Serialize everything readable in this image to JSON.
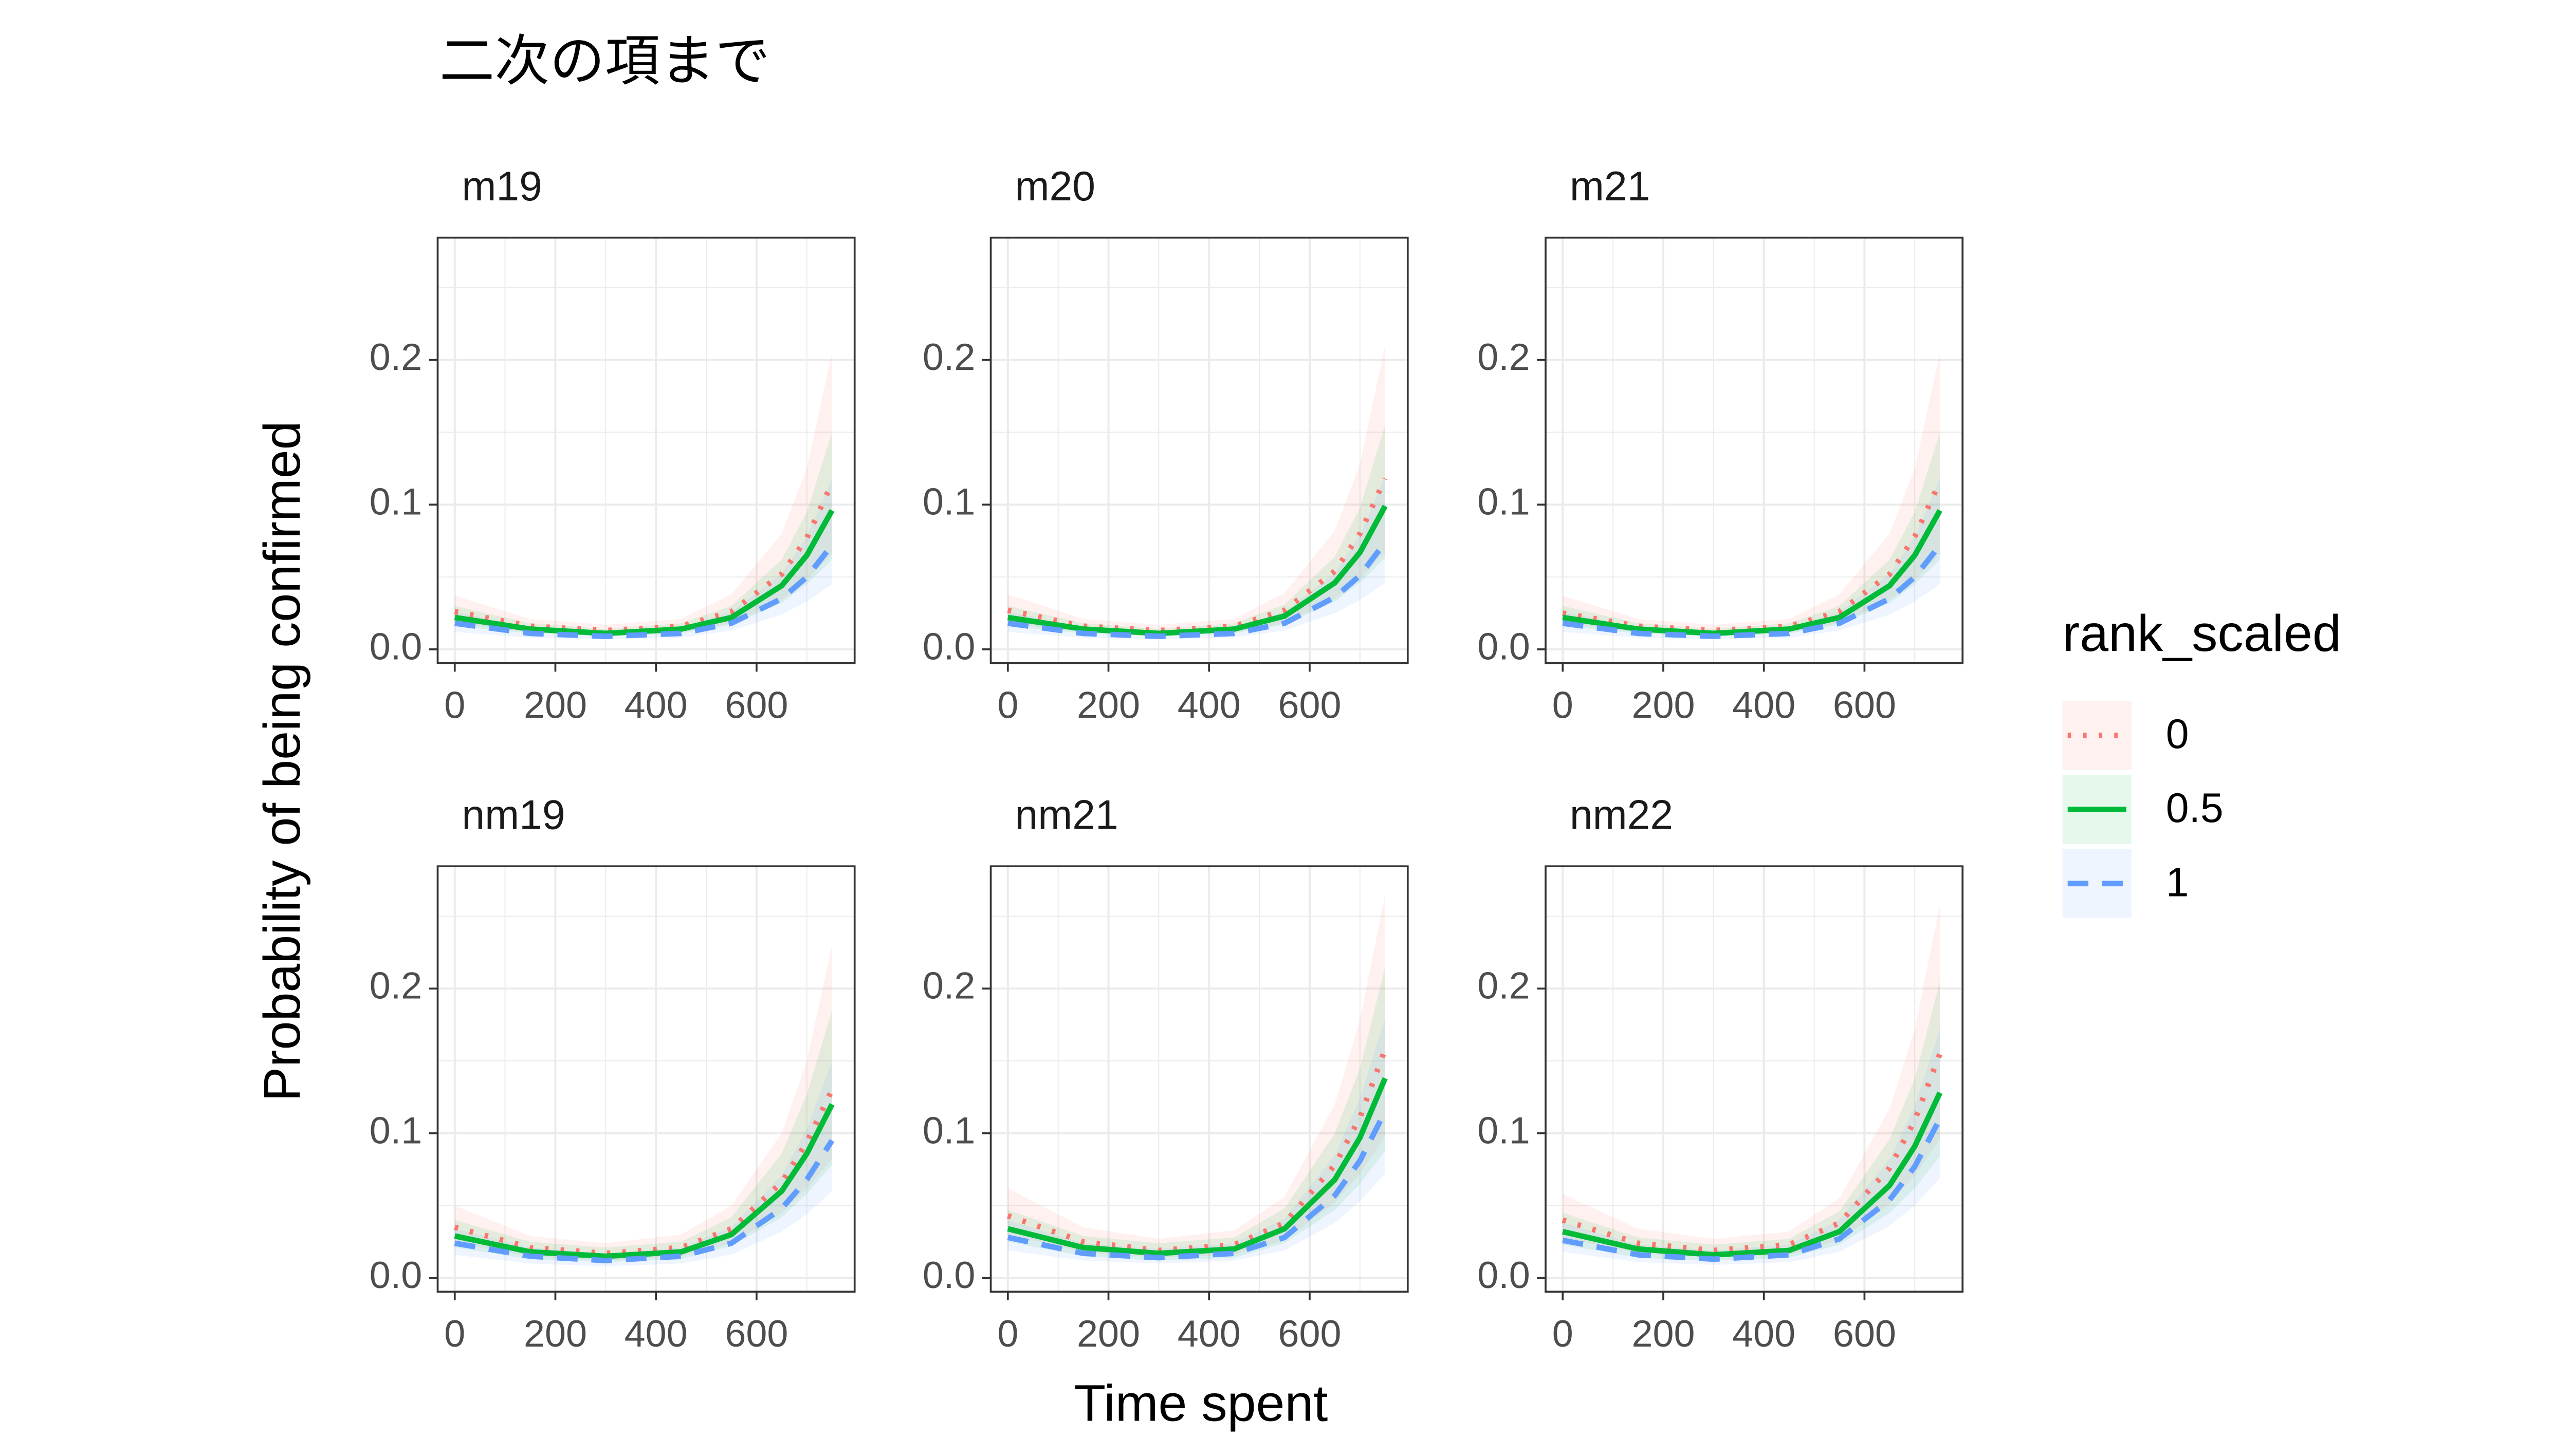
{
  "chart_data": {
    "type": "line",
    "title": "二次の項まで",
    "x_label": "Time spent",
    "y_label": "Probability of being confirmed",
    "legend_title": "rank_scaled",
    "x": [
      0,
      150,
      300,
      450,
      550,
      650,
      700,
      750
    ],
    "xlim": [
      -34,
      795
    ],
    "ylim": [
      -0.0095,
      0.2845
    ],
    "xticks": [
      0,
      200,
      400,
      600
    ],
    "yticks": [
      {
        "value": 0,
        "label": "0.0"
      },
      0.1,
      0.2
    ],
    "x_minor_grid": [
      100,
      300,
      500,
      700
    ],
    "y_minor_grid": [
      0.05,
      0.15,
      0.25
    ],
    "grid": true,
    "series": [
      {
        "name": "0",
        "color": "#F8766D",
        "dash": "dotted"
      },
      {
        "name": "0.5",
        "color": "#00BA38",
        "dash": "solid"
      },
      {
        "name": "1",
        "color": "#619CFF",
        "dash": "dashed"
      }
    ],
    "panels": [
      {
        "name": "m19",
        "values": [
          [
            0.026,
            0.016,
            0.013,
            0.016,
            0.026,
            0.052,
            0.077,
            0.115
          ],
          [
            0.022,
            0.014,
            0.011,
            0.014,
            0.022,
            0.044,
            0.065,
            0.096
          ],
          [
            0.018,
            0.011,
            0.009,
            0.011,
            0.018,
            0.035,
            0.05,
            0.072
          ]
        ],
        "lower": [
          [
            0.018,
            0.012,
            0.01,
            0.012,
            0.018,
            0.034,
            0.048,
            0.066
          ],
          [
            0.016,
            0.011,
            0.009,
            0.011,
            0.017,
            0.032,
            0.045,
            0.062
          ],
          [
            0.012,
            0.008,
            0.007,
            0.008,
            0.013,
            0.024,
            0.033,
            0.045
          ]
        ],
        "upper": [
          [
            0.037,
            0.021,
            0.017,
            0.021,
            0.038,
            0.08,
            0.125,
            0.205
          ],
          [
            0.03,
            0.018,
            0.014,
            0.018,
            0.03,
            0.062,
            0.095,
            0.15
          ],
          [
            0.026,
            0.015,
            0.012,
            0.015,
            0.026,
            0.052,
            0.078,
            0.118
          ]
        ]
      },
      {
        "name": "m20",
        "values": [
          [
            0.027,
            0.016,
            0.013,
            0.016,
            0.027,
            0.054,
            0.08,
            0.118
          ],
          [
            0.022,
            0.014,
            0.011,
            0.014,
            0.023,
            0.046,
            0.067,
            0.099
          ],
          [
            0.018,
            0.011,
            0.009,
            0.011,
            0.018,
            0.036,
            0.051,
            0.074
          ]
        ],
        "lower": [
          [
            0.018,
            0.012,
            0.01,
            0.012,
            0.018,
            0.035,
            0.049,
            0.067
          ],
          [
            0.016,
            0.011,
            0.009,
            0.011,
            0.017,
            0.033,
            0.046,
            0.063
          ],
          [
            0.012,
            0.008,
            0.007,
            0.008,
            0.013,
            0.025,
            0.034,
            0.046
          ]
        ],
        "upper": [
          [
            0.038,
            0.021,
            0.017,
            0.021,
            0.039,
            0.082,
            0.128,
            0.21
          ],
          [
            0.03,
            0.018,
            0.014,
            0.018,
            0.031,
            0.064,
            0.098,
            0.155
          ],
          [
            0.026,
            0.015,
            0.012,
            0.015,
            0.026,
            0.053,
            0.079,
            0.12
          ]
        ]
      },
      {
        "name": "m21",
        "values": [
          [
            0.025,
            0.016,
            0.013,
            0.016,
            0.026,
            0.052,
            0.078,
            0.116
          ],
          [
            0.022,
            0.014,
            0.011,
            0.014,
            0.022,
            0.044,
            0.065,
            0.096
          ],
          [
            0.018,
            0.011,
            0.009,
            0.011,
            0.018,
            0.035,
            0.05,
            0.072
          ]
        ],
        "lower": [
          [
            0.018,
            0.012,
            0.01,
            0.012,
            0.018,
            0.034,
            0.048,
            0.066
          ],
          [
            0.016,
            0.011,
            0.009,
            0.011,
            0.017,
            0.032,
            0.045,
            0.062
          ],
          [
            0.012,
            0.008,
            0.007,
            0.008,
            0.013,
            0.024,
            0.033,
            0.045
          ]
        ],
        "upper": [
          [
            0.037,
            0.021,
            0.017,
            0.021,
            0.038,
            0.08,
            0.125,
            0.205
          ],
          [
            0.03,
            0.018,
            0.014,
            0.018,
            0.03,
            0.062,
            0.095,
            0.15
          ],
          [
            0.026,
            0.015,
            0.012,
            0.015,
            0.026,
            0.052,
            0.078,
            0.118
          ]
        ]
      },
      {
        "name": "nm19",
        "values": [
          [
            0.035,
            0.021,
            0.017,
            0.021,
            0.034,
            0.066,
            0.094,
            0.13
          ],
          [
            0.029,
            0.018,
            0.015,
            0.018,
            0.03,
            0.06,
            0.086,
            0.12
          ],
          [
            0.024,
            0.015,
            0.012,
            0.015,
            0.024,
            0.048,
            0.068,
            0.095
          ]
        ],
        "lower": [
          [
            0.024,
            0.015,
            0.012,
            0.015,
            0.024,
            0.045,
            0.062,
            0.082
          ],
          [
            0.021,
            0.013,
            0.011,
            0.013,
            0.022,
            0.042,
            0.058,
            0.078
          ],
          [
            0.016,
            0.01,
            0.008,
            0.01,
            0.016,
            0.032,
            0.044,
            0.06
          ]
        ],
        "upper": [
          [
            0.05,
            0.029,
            0.024,
            0.03,
            0.05,
            0.1,
            0.15,
            0.23
          ],
          [
            0.04,
            0.025,
            0.021,
            0.025,
            0.042,
            0.086,
            0.127,
            0.185
          ],
          [
            0.034,
            0.021,
            0.017,
            0.021,
            0.035,
            0.071,
            0.103,
            0.15
          ]
        ]
      },
      {
        "name": "nm21",
        "values": [
          [
            0.043,
            0.025,
            0.019,
            0.023,
            0.038,
            0.078,
            0.111,
            0.158
          ],
          [
            0.034,
            0.021,
            0.017,
            0.02,
            0.034,
            0.068,
            0.097,
            0.138
          ],
          [
            0.028,
            0.017,
            0.014,
            0.017,
            0.028,
            0.057,
            0.081,
            0.115
          ]
        ],
        "lower": [
          [
            0.03,
            0.018,
            0.014,
            0.016,
            0.026,
            0.052,
            0.072,
            0.098
          ],
          [
            0.025,
            0.015,
            0.012,
            0.014,
            0.024,
            0.047,
            0.065,
            0.088
          ],
          [
            0.019,
            0.012,
            0.01,
            0.012,
            0.019,
            0.038,
            0.053,
            0.072
          ]
        ],
        "upper": [
          [
            0.062,
            0.035,
            0.027,
            0.033,
            0.056,
            0.12,
            0.178,
            0.265
          ],
          [
            0.047,
            0.029,
            0.024,
            0.028,
            0.048,
            0.1,
            0.145,
            0.215
          ],
          [
            0.04,
            0.024,
            0.02,
            0.024,
            0.041,
            0.085,
            0.124,
            0.18
          ]
        ]
      },
      {
        "name": "nm22",
        "values": [
          [
            0.04,
            0.024,
            0.019,
            0.023,
            0.038,
            0.076,
            0.109,
            0.155
          ],
          [
            0.032,
            0.02,
            0.016,
            0.019,
            0.032,
            0.064,
            0.091,
            0.128
          ],
          [
            0.026,
            0.016,
            0.013,
            0.016,
            0.027,
            0.054,
            0.077,
            0.11
          ]
        ],
        "lower": [
          [
            0.028,
            0.017,
            0.014,
            0.016,
            0.026,
            0.051,
            0.071,
            0.096
          ],
          [
            0.023,
            0.014,
            0.012,
            0.014,
            0.023,
            0.045,
            0.062,
            0.084
          ],
          [
            0.018,
            0.011,
            0.009,
            0.011,
            0.018,
            0.036,
            0.05,
            0.069
          ]
        ],
        "upper": [
          [
            0.058,
            0.034,
            0.027,
            0.032,
            0.055,
            0.117,
            0.172,
            0.258
          ],
          [
            0.045,
            0.028,
            0.023,
            0.027,
            0.046,
            0.096,
            0.138,
            0.205
          ],
          [
            0.038,
            0.023,
            0.019,
            0.023,
            0.04,
            0.082,
            0.119,
            0.172
          ]
        ]
      }
    ]
  }
}
